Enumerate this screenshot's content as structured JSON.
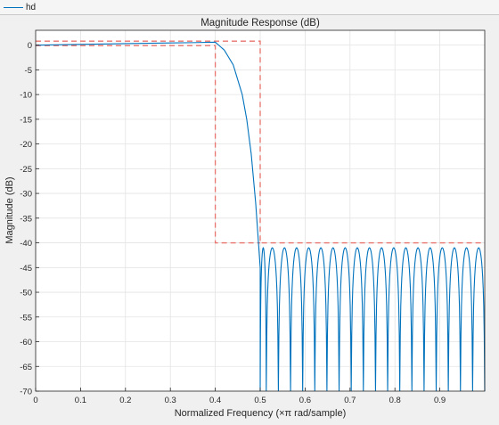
{
  "legend": {
    "label": "hd",
    "color": "#0072bd"
  },
  "chart_data": {
    "type": "line",
    "title": "Magnitude Response (dB)",
    "xlabel": "Normalized Frequency (×π rad/sample)",
    "ylabel": "Magnitude (dB)",
    "xlim": [
      0,
      1
    ],
    "ylim": [
      -70,
      3
    ],
    "grid": true,
    "xticks": [
      0,
      0.1,
      0.2,
      0.3,
      0.4,
      0.5,
      0.6,
      0.7,
      0.8,
      0.9
    ],
    "xtick_labels": [
      "0",
      "0.1",
      "0.2",
      "0.3",
      "0.4",
      "0.5",
      "0.6",
      "0.7",
      "0.8",
      "0.9"
    ],
    "yticks": [
      0,
      -5,
      -10,
      -15,
      -20,
      -25,
      -30,
      -35,
      -40,
      -45,
      -50,
      -55,
      -60,
      -65,
      -70
    ],
    "ytick_labels": [
      "0",
      "-5",
      "-10",
      "-15",
      "-20",
      "-25",
      "-30",
      "-35",
      "-40",
      "-45",
      "-50",
      "-55",
      "-60",
      "-65",
      "-70"
    ],
    "series": [
      {
        "name": "hd",
        "color": "#0072bd",
        "passband": {
          "x": [
            0,
            0.1,
            0.2,
            0.3,
            0.35,
            0.4
          ],
          "y": [
            0,
            0.15,
            0.3,
            0.45,
            0.5,
            0.6
          ]
        },
        "transition": {
          "x": [
            0.4,
            0.42,
            0.44,
            0.46,
            0.47,
            0.48,
            0.49,
            0.5
          ],
          "y": [
            0.6,
            -1.0,
            -4.0,
            -10.0,
            -15.0,
            -22.0,
            -32.0,
            -45.0
          ]
        },
        "stopband": {
          "nulls": [
            0.5,
            0.5135,
            0.5405,
            0.5676,
            0.5946,
            0.6216,
            0.6486,
            0.6757,
            0.7027,
            0.7297,
            0.7568,
            0.7838,
            0.8108,
            0.8378,
            0.8649,
            0.8919,
            0.9189,
            0.9459,
            0.973,
            1.0
          ],
          "peak_level": -41,
          "null_floor": -70
        }
      }
    ],
    "mask": {
      "color": "#e8746d",
      "x": [
        0,
        0.4,
        0.4,
        0.5,
        0.5,
        1.0
      ],
      "y": [
        0.3,
        0.3,
        -40,
        -40,
        0.8,
        0.8
      ],
      "upper": {
        "x": [
          0,
          0.5,
          0.5,
          1.0
        ],
        "y": [
          0.8,
          0.8,
          -40,
          -40
        ]
      },
      "lower": {
        "x": [
          0,
          0.4,
          0.4,
          0.5
        ],
        "y": [
          -0.1,
          -0.1,
          -40,
          -40
        ]
      }
    }
  }
}
